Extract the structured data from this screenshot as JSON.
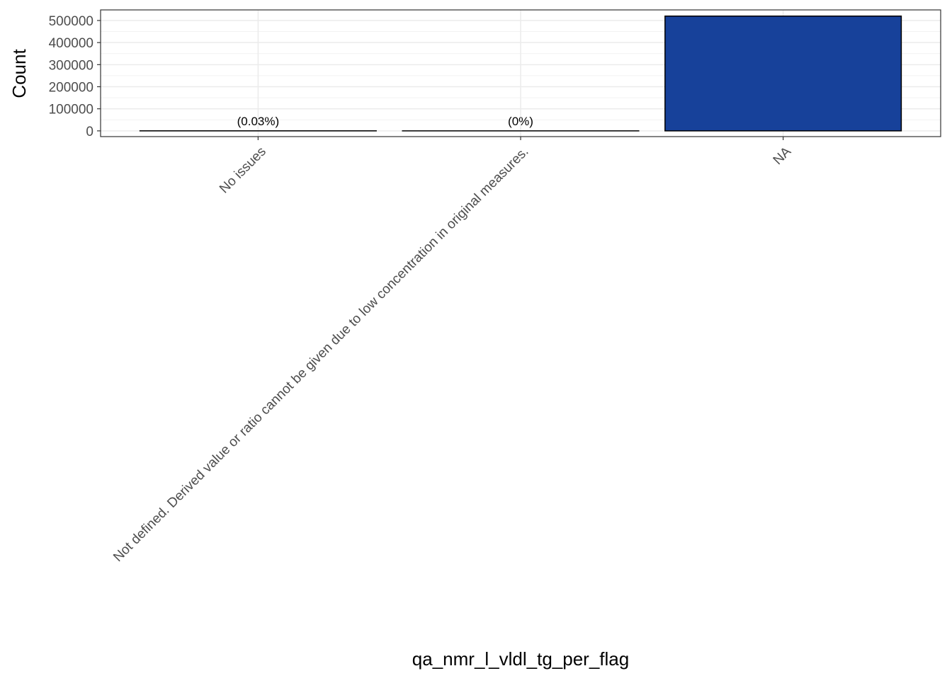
{
  "chart_data": {
    "type": "bar",
    "x_label": "qa_nmr_l_vldl_tg_per_flag",
    "y_label": "Count",
    "categories": [
      "No issues",
      "Not defined. Derived value or ratio cannot be given due to low concentration in original measures.",
      "NA"
    ],
    "values": [
      150,
      2,
      520000
    ],
    "value_labels": [
      "(0.03%)",
      "(0%)",
      null
    ],
    "color": "#17419a",
    "ylim": [
      -26000,
      548000
    ],
    "yticks": [
      0,
      100000,
      200000,
      300000,
      400000,
      500000
    ],
    "grid": true
  }
}
